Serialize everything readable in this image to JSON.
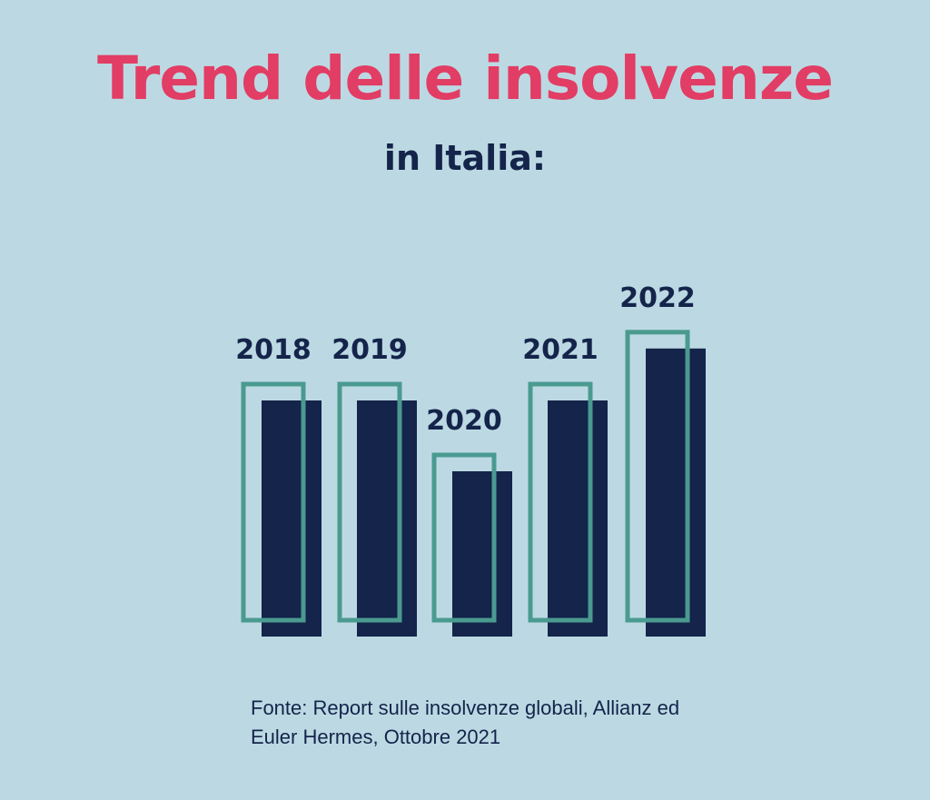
{
  "header": {
    "title": "Trend delle insolvenze",
    "subtitle": "in Italia:"
  },
  "colors": {
    "background": "#bcd9e3",
    "title": "#e23d64",
    "text": "#14244a",
    "bar_fill": "#14244a",
    "bar_outline": "#4a9a90"
  },
  "chart_data": {
    "type": "bar",
    "categories": [
      "2018",
      "2019",
      "2020",
      "2021",
      "2022"
    ],
    "series": [
      {
        "values": [
          100,
          100,
          70,
          100,
          122
        ]
      },
      {
        "values": [
          100,
          100,
          70,
          100,
          122
        ]
      }
    ],
    "ylim": [
      0,
      125
    ],
    "grid": false,
    "axes_visible": false,
    "title": "Trend delle insolvenze",
    "subtitle": "in Italia:"
  },
  "source": {
    "line1": "Fonte: Report sulle insolvenze globali, Allianz ed",
    "line2": "Euler Hermes, Ottobre 2021"
  }
}
